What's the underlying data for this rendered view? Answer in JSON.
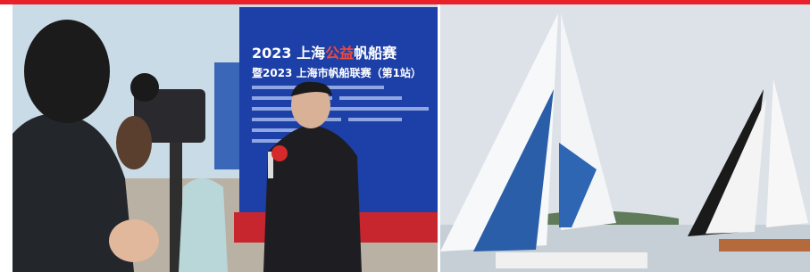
{
  "board": {
    "title_lead": "2023 上海",
    "title_highlight": "公益",
    "title_tail": "帆船赛",
    "subtitle": "暨2023 上海市帆船联赛（第1站）"
  }
}
